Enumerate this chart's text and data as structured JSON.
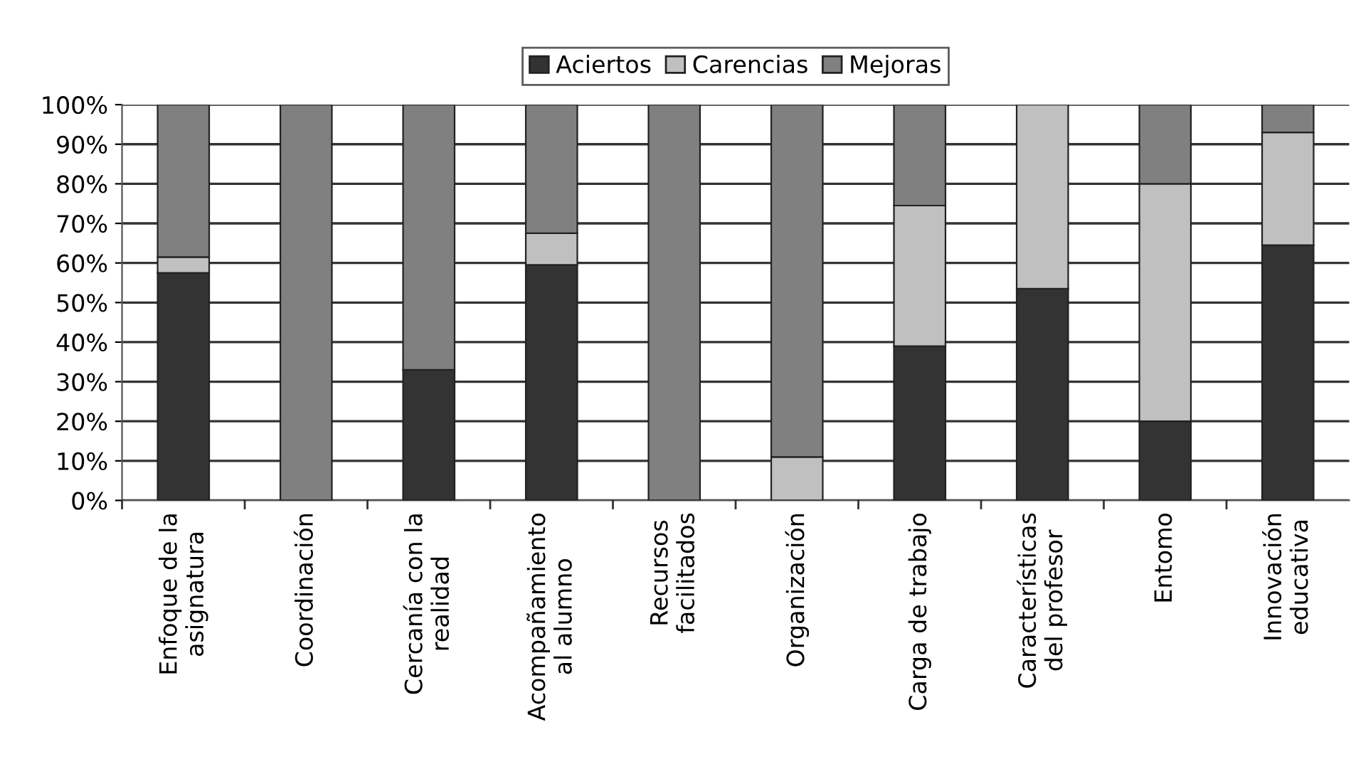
{
  "chart_data": {
    "type": "bar",
    "stacked": true,
    "categories": [
      "Enfoque de la\nasignatura",
      "Coordinación",
      "Cercanía con la\nrealidad",
      "Acompañamiento\nal alumno",
      "Recursos\nfacilitados",
      "Organización",
      "Carga de trabajo",
      "Características\ndel profesor",
      "Entomo",
      "Innovación\neducativa"
    ],
    "series": [
      {
        "name": "Aciertos",
        "color": "#333333",
        "values": [
          57.5,
          0,
          33,
          59.5,
          0,
          0,
          39,
          53.5,
          20,
          64.5
        ]
      },
      {
        "name": "Carencias",
        "color": "#c0c0c0",
        "values": [
          4,
          0,
          0,
          8,
          0,
          11,
          35.5,
          46.5,
          60,
          28.5
        ]
      },
      {
        "name": "Mejoras",
        "color": "#808080",
        "values": [
          38.5,
          100,
          67,
          32.5,
          100,
          89,
          25.5,
          0,
          20,
          7
        ]
      }
    ],
    "ylim": [
      0,
      100
    ],
    "yticks": [
      {
        "value": 0,
        "label": "0%"
      },
      {
        "value": 10,
        "label": "10%"
      },
      {
        "value": 20,
        "label": "20%"
      },
      {
        "value": 30,
        "label": "30%"
      },
      {
        "value": 40,
        "label": "40%"
      },
      {
        "value": 50,
        "label": "50%"
      },
      {
        "value": 60,
        "label": "60%"
      },
      {
        "value": 70,
        "label": "70%"
      },
      {
        "value": 80,
        "label": "80%"
      },
      {
        "value": 90,
        "label": "90%"
      },
      {
        "value": 100,
        "label": "100%"
      }
    ],
    "grid": "y",
    "legend": "top"
  }
}
